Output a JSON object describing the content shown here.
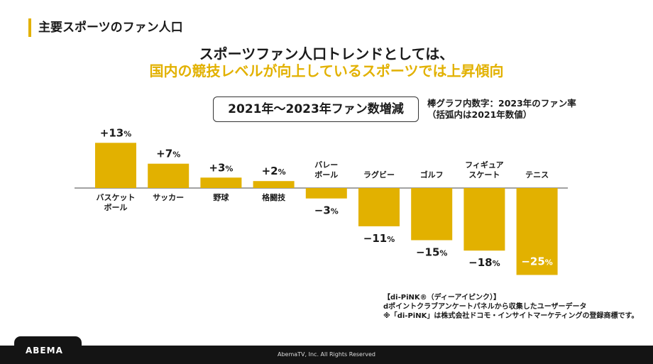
{
  "section_title": "主要スポーツのファン人口",
  "headline": {
    "line1": "スポーツファン人口トレンドとしては、",
    "line2": "国内の競技レベルが向上しているスポーツでは上昇傾向"
  },
  "colors": {
    "accent": "#E2B100",
    "bar": "#E2B100",
    "footer": "#141414"
  },
  "chart_data": {
    "type": "bar",
    "title": "2021年～2023年ファン数増減",
    "note": [
      "棒グラフ内数字：2023年のファン率",
      "（括弧内は2021年数値）"
    ],
    "categories": [
      [
        "バスケット",
        "ボール"
      ],
      [
        "サッカー"
      ],
      [
        "野球"
      ],
      [
        "格闘技"
      ],
      [
        "バレー",
        "ボール"
      ],
      [
        "ラグビー"
      ],
      [
        "ゴルフ"
      ],
      [
        "フィギュア",
        "スケート"
      ],
      [
        "テニス"
      ]
    ],
    "values": [
      13,
      7,
      3,
      2,
      -3,
      -11,
      -15,
      -18,
      -25
    ],
    "value_labels": [
      "+13",
      "+7",
      "+3",
      "+2",
      "−3",
      "−11",
      "−15",
      "−18",
      "−25"
    ],
    "unit": "%",
    "ylim": [
      -25,
      13
    ]
  },
  "source": [
    "【di-PiNK®（ディーアイピンク）】",
    "dポイントクラブアンケートパネルから収集したユーザーデータ",
    "※「di-PiNK」は株式会社ドコモ・インサイトマーケティングの登録商標です。"
  ],
  "footer": {
    "logo": "ABEMA",
    "copyright": "AbemaTV, Inc. All Rights Reserved"
  }
}
